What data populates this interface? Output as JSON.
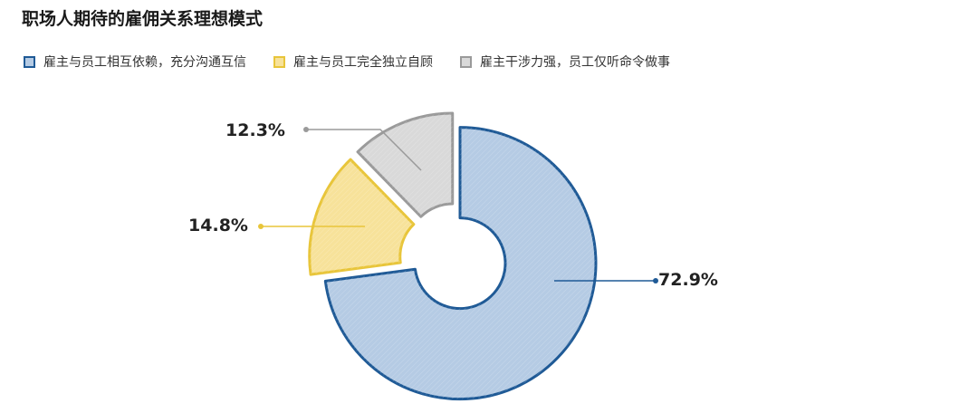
{
  "chart_data": {
    "type": "pie",
    "variant": "donut",
    "title": "职场人期待的雇佣关系理想模式",
    "legend_position": "top-left",
    "series": [
      {
        "name": "雇主与员工相互依赖，充分沟通互信",
        "value": 72.9,
        "label": "72.9%",
        "color": "#1f5a96",
        "fill": "#b5cbe4"
      },
      {
        "name": "雇主与员工完全独立自顾",
        "value": 14.8,
        "label": "14.8%",
        "color": "#e8c53a",
        "fill": "#f7e29a"
      },
      {
        "name": "雇主干涉力强，员工仅听命令做事",
        "value": 12.3,
        "label": "12.3%",
        "color": "#9a9a9a",
        "fill": "#d9d9d9"
      }
    ]
  }
}
